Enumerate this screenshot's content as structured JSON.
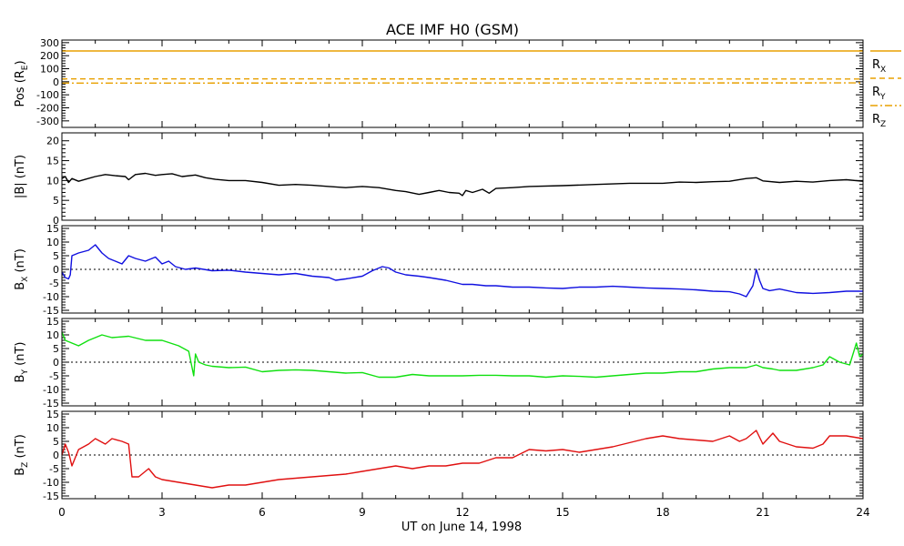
{
  "figure": {
    "title": "ACE IMF H0 (GSM)",
    "xlabel": "UT on June 14, 1998",
    "x_ticks": [
      "0",
      "3",
      "6",
      "9",
      "12",
      "15",
      "18",
      "21",
      "24"
    ],
    "x_range": [
      0,
      24
    ]
  },
  "chart_data": [
    {
      "type": "line",
      "panel": "position",
      "ylabel": "Pos (Rₑ)",
      "ylabel_main": "Pos (R",
      "ylabel_sub": "E",
      "ylabel_tail": ")",
      "ylim": [
        -350,
        320
      ],
      "yticks": [
        "300",
        "200",
        "100",
        "0",
        "-100",
        "-200",
        "-300"
      ],
      "ytick_values": [
        300,
        200,
        100,
        0,
        -100,
        -200,
        -300
      ],
      "zero_line": false,
      "series": [
        {
          "name": "R_X",
          "label_main": "R",
          "label_sub": "X",
          "color": "#e8a000",
          "dash": "solid",
          "x": [
            0,
            24
          ],
          "y": [
            236,
            236
          ]
        },
        {
          "name": "R_Y",
          "label_main": "R",
          "label_sub": "Y",
          "color": "#e8a000",
          "dash": "6,4",
          "x": [
            0,
            24
          ],
          "y": [
            22,
            21
          ]
        },
        {
          "name": "R_Z",
          "label_main": "R",
          "label_sub": "Z",
          "color": "#e8a000",
          "dash": "8,3,2,3",
          "x": [
            0,
            24
          ],
          "y": [
            -10,
            -9
          ]
        }
      ]
    },
    {
      "type": "line",
      "panel": "btotal",
      "ylabel": "|B| (nT)",
      "ylim": [
        0,
        22
      ],
      "yticks": [
        "20",
        "15",
        "10",
        "5",
        "0"
      ],
      "ytick_values": [
        20,
        15,
        10,
        5,
        0
      ],
      "zero_line": false,
      "series": [
        {
          "name": "|B|",
          "color": "#000000",
          "x": [
            0,
            0.1,
            0.2,
            0.3,
            0.5,
            0.7,
            1.0,
            1.3,
            1.6,
            1.9,
            2.0,
            2.2,
            2.5,
            2.8,
            3.0,
            3.3,
            3.6,
            4.0,
            4.3,
            4.6,
            5.0,
            5.5,
            6.0,
            6.5,
            7.0,
            7.5,
            8.0,
            8.5,
            9.0,
            9.5,
            10.0,
            10.3,
            10.7,
            11.0,
            11.3,
            11.6,
            11.9,
            12.0,
            12.1,
            12.3,
            12.6,
            12.8,
            13.0,
            13.5,
            14.0,
            15.0,
            16.0,
            17.0,
            18.0,
            18.5,
            19.0,
            19.5,
            20.0,
            20.5,
            20.8,
            21.0,
            21.5,
            22.0,
            22.5,
            23.0,
            23.5,
            24.0
          ],
          "y": [
            10.5,
            11,
            9.5,
            10.5,
            9.8,
            10.3,
            11,
            11.5,
            11.2,
            11,
            10.2,
            11.5,
            11.8,
            11.3,
            11.5,
            11.7,
            11,
            11.4,
            10.7,
            10.3,
            10,
            10,
            9.5,
            8.8,
            9,
            8.8,
            8.5,
            8.2,
            8.5,
            8.2,
            7.5,
            7.2,
            6.5,
            7,
            7.5,
            7,
            6.8,
            6.2,
            7.5,
            7,
            7.8,
            6.8,
            8,
            8.2,
            8.5,
            8.7,
            9,
            9.3,
            9.3,
            9.6,
            9.5,
            9.7,
            9.8,
            10.5,
            10.7,
            9.9,
            9.5,
            9.8,
            9.6,
            10,
            10.2,
            9.8
          ]
        }
      ]
    },
    {
      "type": "line",
      "panel": "bx",
      "ylabel": "B_X (nT)",
      "ylabel_main": "B",
      "ylabel_sub": "X",
      "ylabel_tail": " (nT)",
      "ylim": [
        -16,
        16
      ],
      "yticks": [
        "15",
        "10",
        "5",
        "0",
        "-5",
        "-10",
        "-15"
      ],
      "ytick_values": [
        15,
        10,
        5,
        0,
        -5,
        -10,
        -15
      ],
      "zero_line": true,
      "series": [
        {
          "name": "B_X",
          "color": "#1010e0",
          "x": [
            0,
            0.05,
            0.1,
            0.2,
            0.25,
            0.3,
            0.5,
            0.8,
            1.0,
            1.2,
            1.4,
            1.6,
            1.8,
            2.0,
            2.2,
            2.5,
            2.8,
            3.0,
            3.2,
            3.4,
            3.7,
            4.0,
            4.5,
            5.0,
            5.5,
            6.0,
            6.5,
            7.0,
            7.5,
            8.0,
            8.2,
            8.5,
            9.0,
            9.3,
            9.6,
            9.8,
            10.0,
            10.3,
            10.7,
            11.0,
            11.5,
            12.0,
            12.3,
            12.7,
            13.0,
            13.5,
            14.0,
            14.5,
            15.0,
            15.5,
            16.0,
            16.5,
            17.0,
            17.5,
            18.0,
            18.5,
            19.0,
            19.5,
            20.0,
            20.3,
            20.5,
            20.7,
            20.8,
            20.9,
            21.0,
            21.2,
            21.5,
            22.0,
            22.5,
            23.0,
            23.5,
            24.0
          ],
          "y": [
            -1,
            -2,
            -3,
            -3.5,
            -2,
            5,
            6,
            7,
            9,
            6,
            4,
            3,
            2,
            5,
            4,
            3,
            4.5,
            2,
            3,
            1,
            0,
            0.5,
            -0.5,
            -0.3,
            -1,
            -1.5,
            -2,
            -1.5,
            -2.5,
            -3,
            -4,
            -3.5,
            -2.5,
            -0.5,
            1,
            0.5,
            -1,
            -2,
            -2.5,
            -3,
            -4,
            -5.5,
            -5.5,
            -6,
            -6,
            -6.5,
            -6.5,
            -6.8,
            -7,
            -6.5,
            -6.5,
            -6.2,
            -6.5,
            -6.8,
            -7,
            -7.2,
            -7.5,
            -8,
            -8.2,
            -9,
            -10,
            -6,
            0,
            -4,
            -7,
            -7.8,
            -7.2,
            -8.5,
            -8.8,
            -8.5,
            -8,
            -8
          ]
        }
      ]
    },
    {
      "type": "line",
      "panel": "by",
      "ylabel": "B_Y (nT)",
      "ylabel_main": "B",
      "ylabel_sub": "Y",
      "ylabel_tail": " (nT)",
      "ylim": [
        -16,
        16
      ],
      "yticks": [
        "15",
        "10",
        "5",
        "0",
        "-5",
        "-10",
        "-15"
      ],
      "ytick_values": [
        15,
        10,
        5,
        0,
        -5,
        -10,
        -15
      ],
      "zero_line": true,
      "series": [
        {
          "name": "B_Y",
          "color": "#10e010",
          "x": [
            0,
            0.1,
            0.3,
            0.5,
            0.8,
            1.0,
            1.2,
            1.5,
            2.0,
            2.5,
            3.0,
            3.5,
            3.8,
            3.95,
            4.0,
            4.1,
            4.3,
            4.5,
            5.0,
            5.5,
            6.0,
            6.5,
            7.0,
            7.5,
            8.0,
            8.5,
            9.0,
            9.5,
            10.0,
            10.5,
            11.0,
            11.5,
            12.0,
            12.5,
            13.0,
            13.5,
            14.0,
            14.5,
            15.0,
            15.5,
            16.0,
            16.5,
            17.0,
            17.5,
            18.0,
            18.5,
            19.0,
            19.5,
            20.0,
            20.5,
            20.8,
            21.0,
            21.3,
            21.5,
            22.0,
            22.5,
            22.8,
            23.0,
            23.3,
            23.6,
            23.8,
            23.9,
            24.0
          ],
          "y": [
            11,
            8,
            7,
            6,
            8,
            9,
            10,
            9,
            9.5,
            8,
            8,
            6,
            4,
            -5,
            3,
            0,
            -1,
            -1.5,
            -2,
            -1.8,
            -3.5,
            -3,
            -2.8,
            -3,
            -3.5,
            -4,
            -3.8,
            -5.5,
            -5.5,
            -4.5,
            -5,
            -5,
            -5,
            -4.8,
            -4.8,
            -5,
            -5,
            -5.5,
            -5,
            -5.2,
            -5.5,
            -5,
            -4.5,
            -4,
            -4,
            -3.5,
            -3.5,
            -2.5,
            -2,
            -2,
            -1,
            -2,
            -2.5,
            -3,
            -3,
            -2,
            -1,
            2,
            0,
            -1,
            7,
            2,
            3
          ]
        }
      ]
    },
    {
      "type": "line",
      "panel": "bz",
      "ylabel": "B_Z (nT)",
      "ylabel_main": "B",
      "ylabel_sub": "Z",
      "ylabel_tail": " (nT)",
      "ylim": [
        -16,
        16
      ],
      "yticks": [
        "15",
        "10",
        "5",
        "0",
        "-5",
        "-10",
        "-15"
      ],
      "ytick_values": [
        15,
        10,
        5,
        0,
        -5,
        -10,
        -15
      ],
      "zero_line": true,
      "series": [
        {
          "name": "B_Z",
          "color": "#e01010",
          "x": [
            0,
            0.1,
            0.2,
            0.3,
            0.5,
            0.8,
            1.0,
            1.3,
            1.5,
            1.8,
            2.0,
            2.1,
            2.3,
            2.6,
            2.8,
            3.0,
            3.5,
            4.0,
            4.5,
            5.0,
            5.5,
            6.0,
            6.5,
            7.0,
            7.5,
            8.0,
            8.5,
            9.0,
            9.5,
            10.0,
            10.5,
            11.0,
            11.5,
            12.0,
            12.5,
            13.0,
            13.5,
            14.0,
            14.5,
            15.0,
            15.5,
            16.0,
            16.5,
            17.0,
            17.5,
            18.0,
            18.5,
            19.0,
            19.5,
            20.0,
            20.3,
            20.5,
            20.8,
            21.0,
            21.3,
            21.5,
            22.0,
            22.5,
            22.8,
            23.0,
            23.5,
            24.0
          ],
          "y": [
            0,
            4,
            1,
            -4,
            2,
            4,
            6,
            4,
            6,
            5,
            4,
            -8,
            -8,
            -5,
            -8,
            -9,
            -10,
            -11,
            -12,
            -11,
            -11,
            -10,
            -9,
            -8.5,
            -8,
            -7.5,
            -7,
            -6,
            -5,
            -4,
            -5,
            -4,
            -4,
            -3,
            -3,
            -1,
            -1,
            2,
            1.5,
            2,
            1,
            2,
            3,
            4.5,
            6,
            7,
            6,
            5.5,
            5,
            7,
            5,
            6,
            9,
            4,
            8,
            5,
            3,
            2.5,
            4,
            7,
            7,
            6
          ]
        }
      ]
    }
  ]
}
